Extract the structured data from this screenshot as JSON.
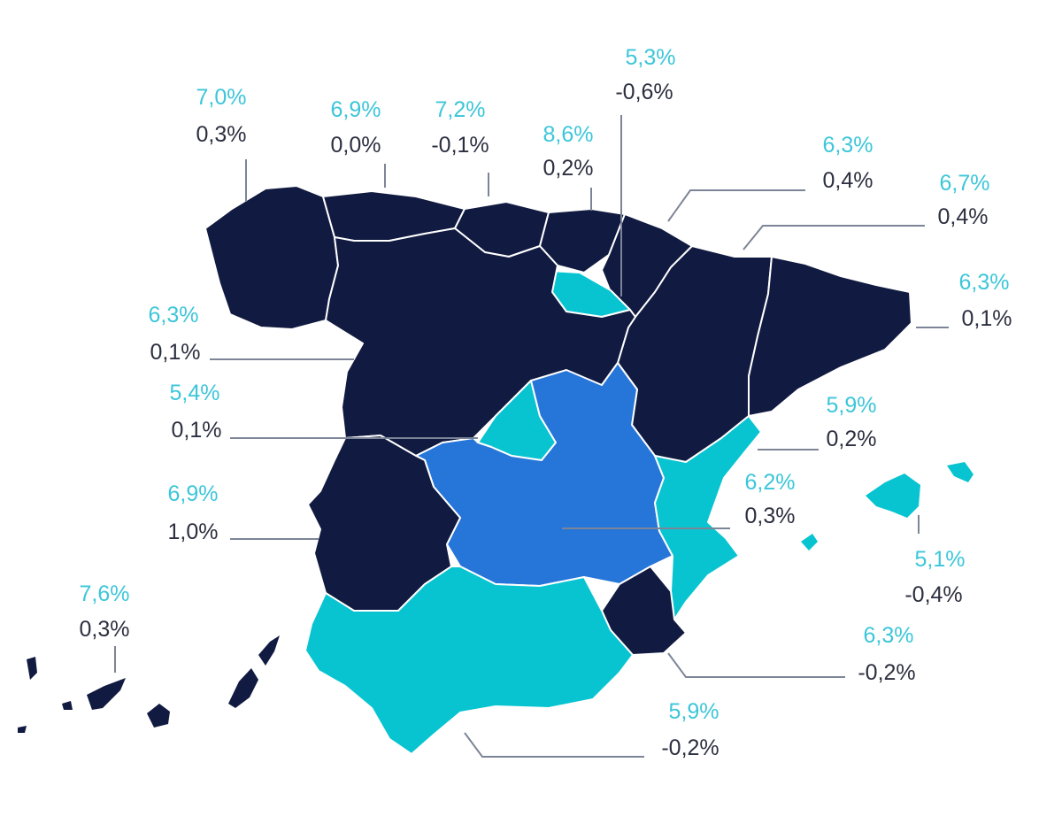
{
  "legend_colors": {
    "dark": "#111a40",
    "teal": "#08c4d1",
    "blue": "#2675d8",
    "value_top": "#3cc6d9",
    "value_bottom": "#2c2f3f"
  },
  "labels": {
    "galicia": {
      "top": "7,0%",
      "bottom": "0,3%"
    },
    "asturias": {
      "top": "6,9%",
      "bottom": "0,0%"
    },
    "cantabria": {
      "top": "7,2%",
      "bottom": "-0,1%"
    },
    "pais_vasco": {
      "top": "8,6%",
      "bottom": "0,2%"
    },
    "la_rioja": {
      "top": "5,3%",
      "bottom": "-0,6%"
    },
    "navarra": {
      "top": "6,3%",
      "bottom": "0,4%"
    },
    "aragon": {
      "top": "6,7%",
      "bottom": "0,4%"
    },
    "cataluna": {
      "top": "6,3%",
      "bottom": "0,1%"
    },
    "castilla_leon": {
      "top": "6,3%",
      "bottom": "0,1%"
    },
    "madrid": {
      "top": "5,4%",
      "bottom": "0,1%"
    },
    "valencia": {
      "top": "5,9%",
      "bottom": "0,2%"
    },
    "castilla_la_mancha": {
      "top": "6,2%",
      "bottom": "0,3%"
    },
    "extremadura": {
      "top": "6,9%",
      "bottom": "1,0%"
    },
    "baleares": {
      "top": "5,1%",
      "bottom": "-0,4%"
    },
    "canarias": {
      "top": "7,6%",
      "bottom": "0,3%"
    },
    "murcia": {
      "top": "6,3%",
      "bottom": "-0,2%"
    },
    "andalucia": {
      "top": "5,9%",
      "bottom": "-0,2%"
    }
  }
}
